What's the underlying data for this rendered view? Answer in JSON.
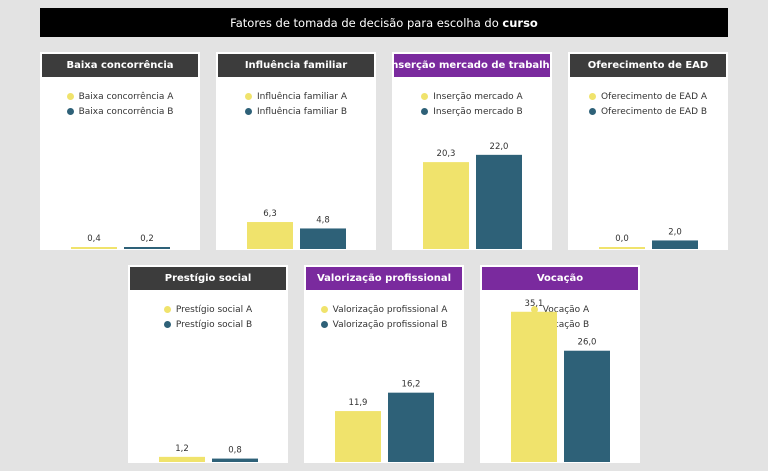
{
  "page": {
    "title_prefix": "Fatores de tomada de decisão para escolha do ",
    "title_bold": "curso"
  },
  "colors": {
    "series_a": "#f0e36c",
    "series_b": "#2e6178",
    "header_dark": "#3c3c3c",
    "header_purple": "#7a2a9e"
  },
  "chart_data": [
    {
      "type": "bar",
      "title": "Baixa concorrência",
      "header_color": "dark",
      "categories": [
        "Baixa concorrência A",
        "Baixa concorrência B"
      ],
      "values": [
        0.4,
        0.2
      ],
      "labels": [
        "0,4",
        "0,2"
      ],
      "ylim": [
        0,
        36
      ]
    },
    {
      "type": "bar",
      "title": "Influência familiar",
      "header_color": "dark",
      "categories": [
        "Influência familiar A",
        "Influência familiar B"
      ],
      "values": [
        6.3,
        4.8
      ],
      "labels": [
        "6,3",
        "4,8"
      ],
      "ylim": [
        0,
        36
      ]
    },
    {
      "type": "bar",
      "title": "Inserção mercado de trabalho",
      "header_color": "purple",
      "categories": [
        "Inserção mercado A",
        "Inserção mercado B"
      ],
      "values": [
        20.3,
        22.0
      ],
      "labels": [
        "20,3",
        "22,0"
      ],
      "ylim": [
        0,
        36
      ]
    },
    {
      "type": "bar",
      "title": "Oferecimento de EAD",
      "header_color": "dark",
      "categories": [
        "Oferecimento de EAD A",
        "Oferecimento de EAD B"
      ],
      "values": [
        0.0,
        2.0
      ],
      "labels": [
        "0,0",
        "2,0"
      ],
      "ylim": [
        0,
        36
      ]
    },
    {
      "type": "bar",
      "title": "Prestígio social",
      "header_color": "dark",
      "categories": [
        "Prestígio social A",
        "Prestígio social B"
      ],
      "values": [
        1.2,
        0.8
      ],
      "labels": [
        "1,2",
        "0,8"
      ],
      "ylim": [
        0,
        36
      ]
    },
    {
      "type": "bar",
      "title": "Valorização profissional",
      "header_color": "purple",
      "categories": [
        "Valorização profissional A",
        "Valorização profissional B"
      ],
      "values": [
        11.9,
        16.2
      ],
      "labels": [
        "11,9",
        "16,2"
      ],
      "ylim": [
        0,
        36
      ]
    },
    {
      "type": "bar",
      "title": "Vocação",
      "header_color": "purple",
      "categories": [
        "Vocação A",
        "Vocação B"
      ],
      "values": [
        35.1,
        26.0
      ],
      "labels": [
        "35,1",
        "26,0"
      ],
      "ylim": [
        0,
        36
      ]
    }
  ]
}
